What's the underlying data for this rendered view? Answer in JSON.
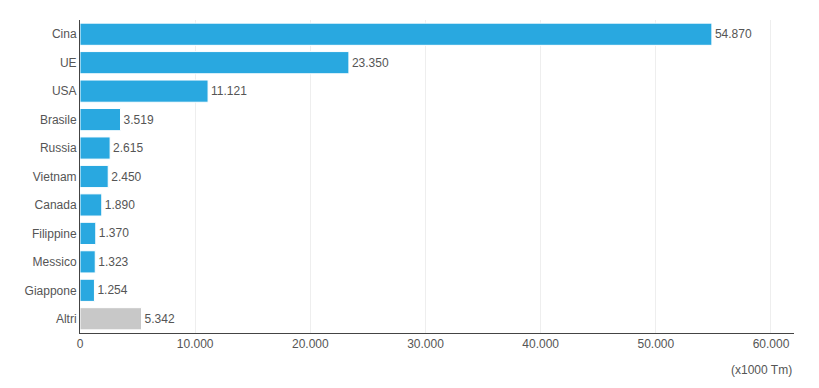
{
  "chart_data": {
    "type": "bar",
    "orientation": "horizontal",
    "categories": [
      "Cina",
      "UE",
      "USA",
      "Brasile",
      "Russia",
      "Vietnam",
      "Canada",
      "Filippine",
      "Messico",
      "Giappone",
      "Altri"
    ],
    "values": [
      54870,
      23350,
      11121,
      3519,
      2615,
      2450,
      1890,
      1370,
      1323,
      1254,
      5342
    ],
    "value_labels": [
      "54.870",
      "23.350",
      "11.121",
      "3.519",
      "2.615",
      "2.450",
      "1.890",
      "1.370",
      "1.323",
      "1.254",
      "5.342"
    ],
    "colors": [
      "#29a8e0",
      "#29a8e0",
      "#29a8e0",
      "#29a8e0",
      "#29a8e0",
      "#29a8e0",
      "#29a8e0",
      "#29a8e0",
      "#29a8e0",
      "#29a8e0",
      "#c8c8c8"
    ],
    "xlim": [
      0,
      62000
    ],
    "xticks": [
      0,
      {
        "value": 10000,
        "label": "10.000"
      },
      {
        "value": 20000,
        "label": "20.000"
      },
      {
        "value": 30000,
        "label": "30.000"
      },
      {
        "value": 40000,
        "label": "40.000"
      },
      {
        "value": 50000,
        "label": "50.000"
      },
      {
        "value": 60000,
        "label": "60.000"
      }
    ],
    "grid": true,
    "data_labels": true,
    "annotations": [
      "(x1000 Tm)"
    ]
  }
}
